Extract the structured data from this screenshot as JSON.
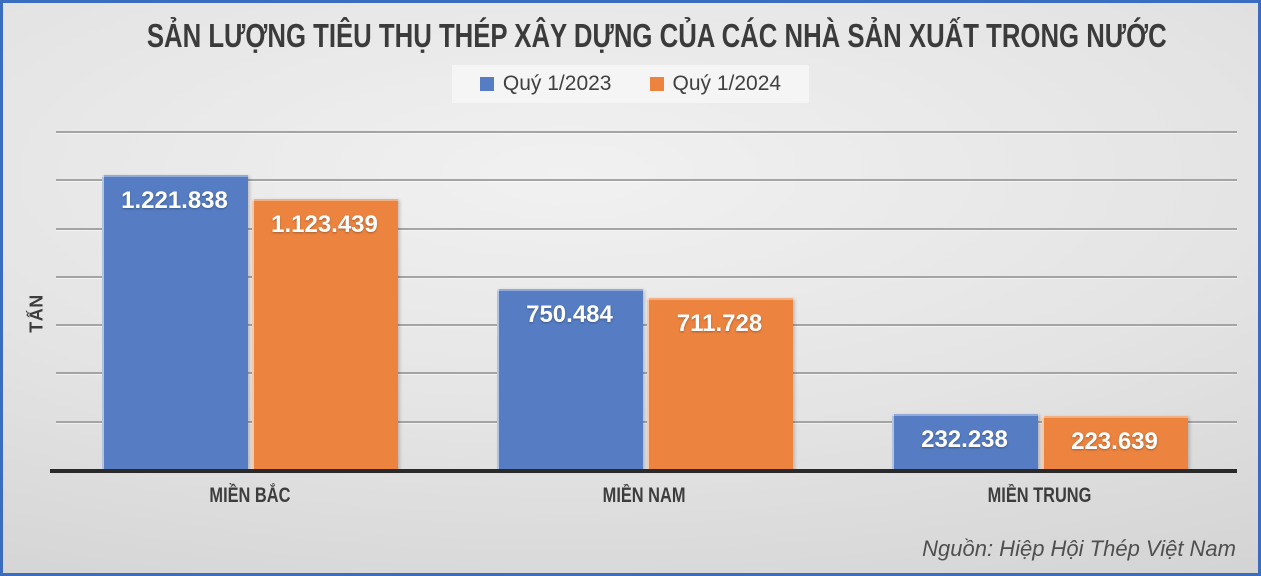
{
  "chart_data": {
    "type": "bar",
    "title": "SẢN LƯỢNG TIÊU THỤ THÉP XÂY DỰNG CỦA CÁC NHÀ SẢN XUẤT TRONG NƯỚC",
    "ylabel": "TẤN",
    "xlabel": "",
    "source": "Nguồn: Hiệp Hội Thép Việt Nam",
    "categories": [
      "MIỀN BẮC",
      "MIỀN NAM",
      "MIỀN TRUNG"
    ],
    "series": [
      {
        "name": "Quý 1/2023",
        "color": "#567dc3",
        "values": [
          1221838,
          750484,
          232238
        ],
        "labels": [
          "1.221.838",
          "750.484",
          "232.238"
        ]
      },
      {
        "name": "Quý 1/2024",
        "color": "#ec8440",
        "values": [
          1123439,
          711728,
          223639
        ],
        "labels": [
          "1.123.439",
          "711.728",
          "223.639"
        ]
      }
    ],
    "ylim": [
      0,
      1400000
    ],
    "gridline_step": 200000,
    "grid": true,
    "legend_position": "top",
    "y_tick_labels_visible": false
  },
  "colors": {
    "frame_border": "#3a6cc0",
    "axis_line": "#2a2a2a",
    "gridline": "#a4a4a4",
    "series_q1_2023": "#567dc3",
    "series_q1_2024": "#ec8440"
  }
}
